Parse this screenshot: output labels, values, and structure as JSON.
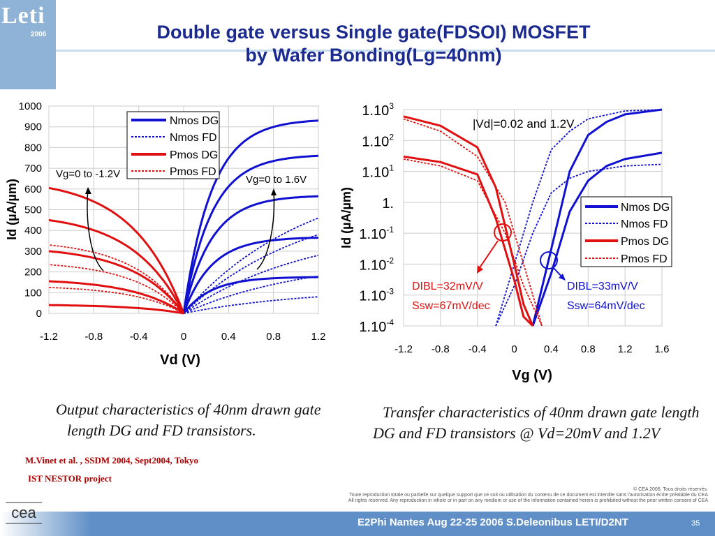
{
  "logo": {
    "text": "Leti",
    "year": "2006"
  },
  "title": {
    "line1": "Double gate versus Single gate(FDSOI) MOSFET",
    "line2": "by Wafer Bonding(Lg=40nm)"
  },
  "left_chart_annotations": {
    "vg_neg": "Vg=0 to -1.2V",
    "vg_pos": "Vg=0 to 1.6V"
  },
  "right_chart_annotations": {
    "vd": "|Vd|=0.02 and 1.2V",
    "dibl_p": "DIBL=32mV/V",
    "ssw_p": "Ssw=67mV/dec",
    "dibl_n": "DIBL=33mV/V",
    "ssw_n": "Ssw=64mV/dec"
  },
  "captions": {
    "left_1": "Output characteristics of 40nm drawn gate",
    "left_2": "length DG and FD transistors.",
    "right_1": "Transfer characteristics of 40nm drawn gate length",
    "right_2": "DG and FD transistors @ Vd=20mV and 1.2V"
  },
  "references": {
    "line1": "M.Vinet et al. , SSDM 2004, Sept2004, Tokyo",
    "line2": "IST NESTOR project"
  },
  "copyright": {
    "line1": "© CEA 2006. Tous droits réservés.",
    "line2": "Toute reproduction totale ou partielle sur quelque support que ce soit ou utilisation du contenu de ce document est interdite sans l'autorisation écrite préalable du CEA",
    "line3": "All rights reserved. Any reproduction in whole or in part on any medium or use of the information contained herein is prohibited without the prior written consent of CEA"
  },
  "footer": {
    "text": "E2Phi Nantes Aug 22-25 2006 S.Deleonibus LETI/D2NT",
    "page": "35"
  },
  "colors": {
    "nmos": "#1010d0",
    "pmos": "#e01010",
    "title": "#1b2a8f"
  },
  "chart_data": [
    {
      "type": "line",
      "xlabel": "Vd (V)",
      "ylabel": "Id (µA/µm)",
      "xlim": [
        -1.2,
        1.2
      ],
      "ylim": [
        0,
        1000
      ],
      "x_ticks": [
        "-1.2",
        "-0.8",
        "-0.4",
        "0",
        "0.4",
        "0.8",
        "1.2"
      ],
      "y_ticks": [
        "0",
        "100",
        "200",
        "300",
        "400",
        "500",
        "600",
        "700",
        "800",
        "900",
        "1000"
      ],
      "legend": [
        "Nmos DG",
        "Nmos FD",
        "Pmos DG",
        "Pmos FD"
      ],
      "legend_position": "top-center",
      "series": [
        {
          "name": "Nmos DG",
          "sat_currents": [
            930,
            760,
            565,
            365,
            175
          ]
        },
        {
          "name": "Nmos FD",
          "sat_currents": [
            460,
            380,
            280,
            180,
            80
          ]
        },
        {
          "name": "Pmos DG",
          "sat_currents": [
            605,
            450,
            300,
            155,
            40
          ]
        },
        {
          "name": "Pmos FD",
          "sat_currents": [
            450,
            330,
            235,
            125,
            40
          ]
        }
      ]
    },
    {
      "type": "line",
      "xlabel": "Vg (V)",
      "ylabel": "Id (µA/µm)",
      "xlim": [
        -1.2,
        1.6
      ],
      "ylim": [
        0.0001,
        1000
      ],
      "yscale": "log",
      "x_ticks": [
        "-1.2",
        "-0.8",
        "-0.4",
        "0",
        "0.4",
        "0.8",
        "1.2",
        "1.6"
      ],
      "y_ticks": [
        "1.10-4",
        "1.10-3",
        "1.10-2",
        "1.10-1",
        "1.",
        "1.101",
        "1.102",
        "1.103"
      ],
      "legend": [
        "Nmos DG",
        "Nmos FD",
        "Pmos DG",
        "Pmos FD"
      ],
      "legend_position": "right",
      "series": [
        {
          "name": "Nmos DG",
          "x": [
            0.2,
            0.4,
            0.6,
            0.8,
            1.0,
            1.2,
            1.6
          ],
          "y_high": [
            0.0001,
            0.03,
            10,
            150,
            400,
            700,
            1000
          ],
          "y_low": [
            0.0001,
            0.005,
            0.5,
            5,
            15,
            25,
            40
          ]
        },
        {
          "name": "Nmos FD",
          "x": [
            -0.2,
            0.0,
            0.2,
            0.4,
            0.6,
            0.8,
            1.2,
            1.6
          ],
          "y_high": [
            0.0001,
            0.01,
            1,
            50,
            200,
            500,
            900,
            1000
          ],
          "y_low": [
            0.0001,
            0.002,
            0.1,
            2,
            6,
            10,
            15,
            17
          ]
        },
        {
          "name": "Pmos DG",
          "x": [
            -1.2,
            -0.8,
            -0.4,
            -0.2,
            0.0,
            0.1,
            0.2
          ],
          "y_high": [
            600,
            300,
            60,
            3,
            0.01,
            0.0005,
            0.0001
          ],
          "y_low": [
            30,
            20,
            8,
            0.3,
            0.003,
            0.0002,
            0.0001
          ]
        },
        {
          "name": "Pmos FD",
          "x": [
            -1.2,
            -0.8,
            -0.4,
            -0.1,
            0.1,
            0.3
          ],
          "y_high": [
            500,
            200,
            30,
            1,
            0.01,
            0.0001
          ],
          "y_low": [
            25,
            15,
            5,
            0.1,
            0.002,
            0.0001
          ]
        }
      ]
    }
  ]
}
